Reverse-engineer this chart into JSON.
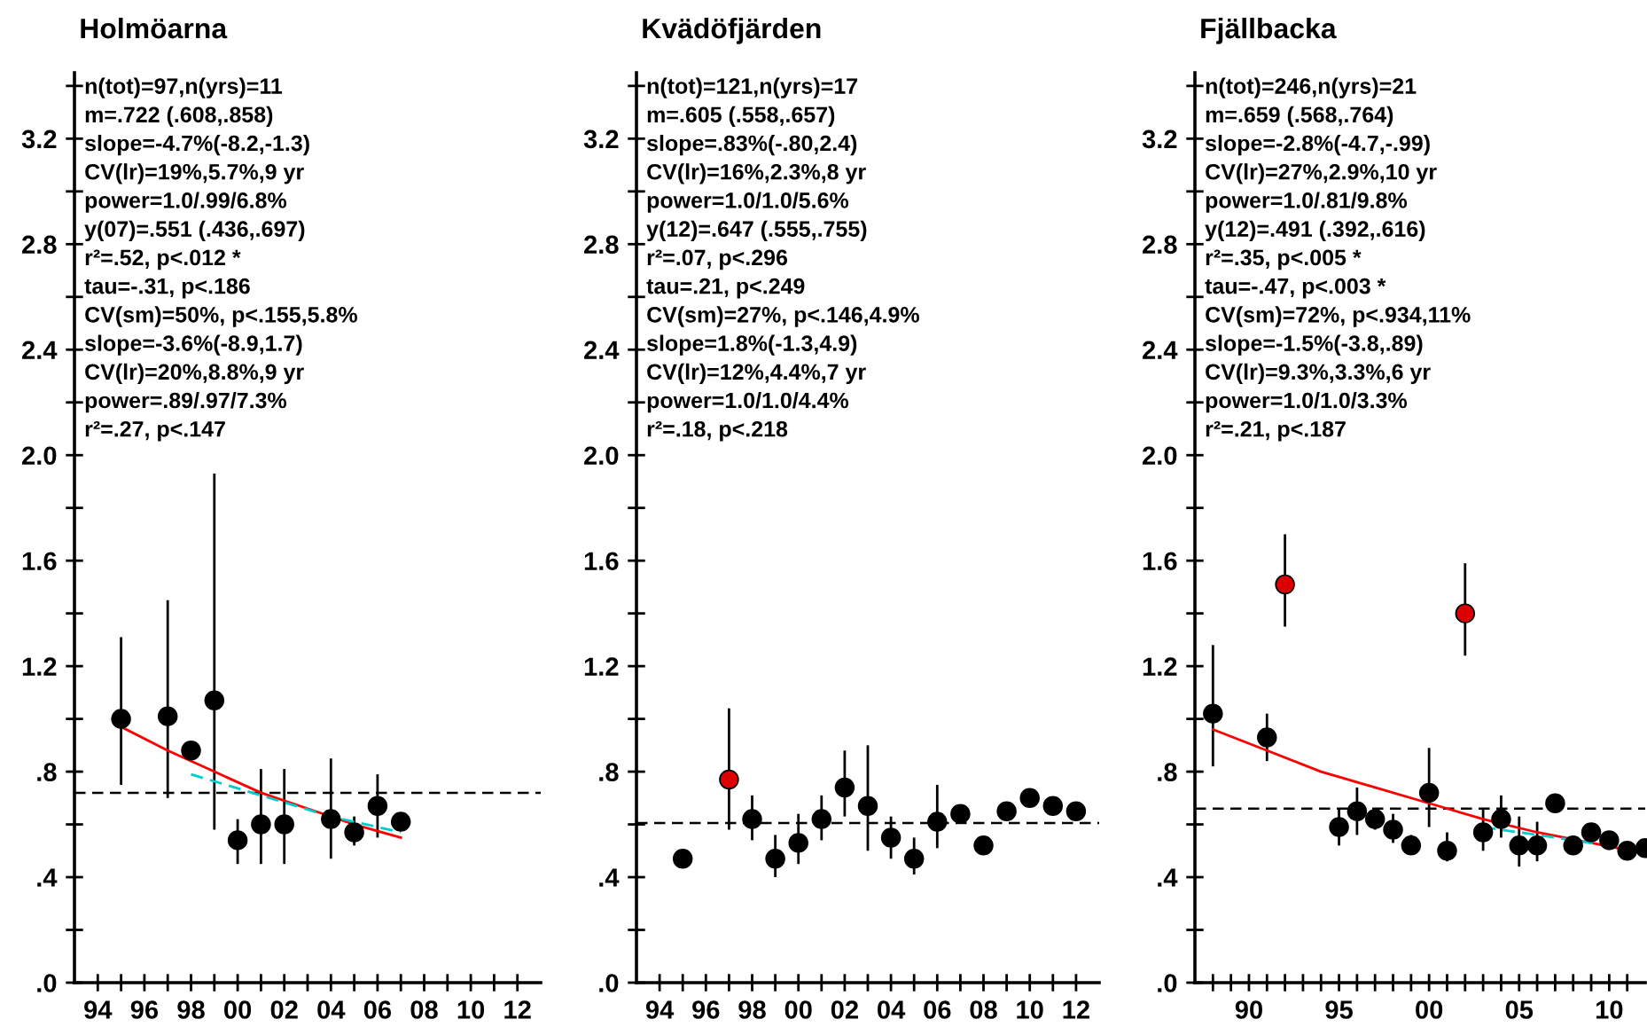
{
  "chart_data": [
    {
      "type": "scatter",
      "title": "Holmöarna",
      "marker": "circle",
      "grid": false,
      "xlim": [
        1993,
        2013
      ],
      "ylim": [
        0,
        3.45
      ],
      "xticks": [
        {
          "value": 1994,
          "label": "94"
        },
        {
          "value": 1995,
          "label": null
        },
        {
          "value": 1996,
          "label": "96"
        },
        {
          "value": 1997,
          "label": null
        },
        {
          "value": 1998,
          "label": "98"
        },
        {
          "value": 1999,
          "label": null
        },
        {
          "value": 2000,
          "label": "00"
        },
        {
          "value": 2001,
          "label": null
        },
        {
          "value": 2002,
          "label": "02"
        },
        {
          "value": 2003,
          "label": null
        },
        {
          "value": 2004,
          "label": "04"
        },
        {
          "value": 2005,
          "label": null
        },
        {
          "value": 2006,
          "label": "06"
        },
        {
          "value": 2007,
          "label": null
        },
        {
          "value": 2008,
          "label": "08"
        },
        {
          "value": 2009,
          "label": null
        },
        {
          "value": 2010,
          "label": "10"
        },
        {
          "value": 2011,
          "label": null
        },
        {
          "value": 2012,
          "label": "12"
        }
      ],
      "yticks": [
        {
          "value": 0,
          "label": ".0"
        },
        {
          "value": 0.2,
          "label": null
        },
        {
          "value": 0.4,
          "label": ".4"
        },
        {
          "value": 0.6,
          "label": null
        },
        {
          "value": 0.8,
          "label": ".8"
        },
        {
          "value": 1.0,
          "label": null
        },
        1.2,
        {
          "value": 1.4,
          "label": null
        },
        1.6,
        {
          "value": 1.8,
          "label": null
        },
        {
          "value": 2.0,
          "label": "2.0"
        },
        {
          "value": 2.2,
          "label": null
        },
        2.4,
        {
          "value": 2.6,
          "label": null
        },
        2.8,
        {
          "value": 3.0,
          "label": null
        },
        3.2,
        {
          "value": 3.4,
          "label": null
        }
      ],
      "series": [
        {
          "x": [
            1995,
            1997,
            1998,
            1999,
            2000,
            2001,
            2002,
            2004,
            2005,
            2006,
            2007
          ],
          "values": [
            1.0,
            1.01,
            0.88,
            1.07,
            0.54,
            0.6,
            0.6,
            0.62,
            0.57,
            0.67,
            0.61
          ],
          "colors": [
            "#000000",
            "#000000",
            "#000000",
            "#000000",
            "#000000",
            "#000000",
            "#000000",
            "#000000",
            "#000000",
            "#000000",
            "#000000"
          ],
          "errors": [
            [
              0.75,
              1.31
            ],
            [
              0.7,
              1.45
            ],
            null,
            [
              0.58,
              1.93
            ],
            [
              0.45,
              0.62
            ],
            [
              0.45,
              0.81
            ],
            [
              0.45,
              0.81
            ],
            [
              0.47,
              0.85
            ],
            [
              0.52,
              0.63
            ],
            [
              0.55,
              0.79
            ],
            null
          ]
        },
        {
          "type": "line",
          "color": "#ff0000",
          "marker": "none",
          "x": [
            1995,
            1997,
            1999,
            2001,
            2003,
            2005,
            2007
          ],
          "values": [
            0.97,
            0.88,
            0.8,
            0.72,
            0.66,
            0.6,
            0.55
          ]
        },
        {
          "type": "line",
          "color": "#00cccc",
          "marker": "none",
          "line_style": "dashed",
          "x": [
            1998,
            2001,
            2004,
            2007
          ],
          "values": [
            0.79,
            0.71,
            0.63,
            0.57
          ]
        }
      ],
      "ref_lines": [
        {
          "axis": "y",
          "value": 0.72,
          "color": "#000000",
          "line_style": "dashed"
        }
      ],
      "annotations": [
        "n(tot)=97,n(yrs)=11",
        "m=.722 (.608,.858)",
        "slope=-4.7%(-8.2,-1.3)",
        "CV(lr)=19%,5.7%,9 yr",
        "power=1.0/.99/6.8%",
        "y(07)=.551 (.436,.697)",
        "r²=.52, p<.012 *",
        "tau=-.31, p<.186",
        "CV(sm)=50%, p<.155,5.8%",
        "slope=-3.6%(-8.9,1.7)",
        "CV(lr)=20%,8.8%,9 yr",
        "power=.89/.97/7.3%",
        "r²=.27, p<.147"
      ]
    },
    {
      "type": "scatter",
      "title": "Kvädöfjärden",
      "marker": "circle",
      "grid": false,
      "xlim": [
        1993,
        2013
      ],
      "ylim": [
        0,
        3.45
      ],
      "xticks": [
        {
          "value": 1994,
          "label": "94"
        },
        {
          "value": 1995,
          "label": null
        },
        {
          "value": 1996,
          "label": "96"
        },
        {
          "value": 1997,
          "label": null
        },
        {
          "value": 1998,
          "label": "98"
        },
        {
          "value": 1999,
          "label": null
        },
        {
          "value": 2000,
          "label": "00"
        },
        {
          "value": 2001,
          "label": null
        },
        {
          "value": 2002,
          "label": "02"
        },
        {
          "value": 2003,
          "label": null
        },
        {
          "value": 2004,
          "label": "04"
        },
        {
          "value": 2005,
          "label": null
        },
        {
          "value": 2006,
          "label": "06"
        },
        {
          "value": 2007,
          "label": null
        },
        {
          "value": 2008,
          "label": "08"
        },
        {
          "value": 2009,
          "label": null
        },
        {
          "value": 2010,
          "label": "10"
        },
        {
          "value": 2011,
          "label": null
        },
        {
          "value": 2012,
          "label": "12"
        }
      ],
      "yticks": [
        {
          "value": 0,
          "label": ".0"
        },
        {
          "value": 0.2,
          "label": null
        },
        {
          "value": 0.4,
          "label": ".4"
        },
        {
          "value": 0.6,
          "label": null
        },
        {
          "value": 0.8,
          "label": ".8"
        },
        {
          "value": 1.0,
          "label": null
        },
        1.2,
        {
          "value": 1.4,
          "label": null
        },
        1.6,
        {
          "value": 1.8,
          "label": null
        },
        {
          "value": 2.0,
          "label": "2.0"
        },
        {
          "value": 2.2,
          "label": null
        },
        2.4,
        {
          "value": 2.6,
          "label": null
        },
        2.8,
        {
          "value": 3.0,
          "label": null
        },
        3.2,
        {
          "value": 3.4,
          "label": null
        }
      ],
      "series": [
        {
          "x": [
            1995,
            1997,
            1998,
            1999,
            2000,
            2001,
            2002,
            2003,
            2004,
            2005,
            2006,
            2007,
            2008,
            2009,
            2010,
            2011,
            2012
          ],
          "values": [
            0.47,
            0.77,
            0.62,
            0.47,
            0.53,
            0.62,
            0.74,
            0.67,
            0.55,
            0.47,
            0.61,
            0.64,
            0.52,
            0.65,
            0.7,
            0.67,
            0.65
          ],
          "colors": [
            "#000000",
            "#dd0000",
            "#000000",
            "#000000",
            "#000000",
            "#000000",
            "#000000",
            "#000000",
            "#000000",
            "#000000",
            "#000000",
            "#000000",
            "#000000",
            "#000000",
            "#000000",
            "#000000",
            "#000000"
          ],
          "errors": [
            null,
            [
              0.58,
              1.04
            ],
            [
              0.54,
              0.71
            ],
            [
              0.4,
              0.56
            ],
            [
              0.45,
              0.64
            ],
            [
              0.54,
              0.71
            ],
            [
              0.63,
              0.88
            ],
            [
              0.5,
              0.9
            ],
            [
              0.47,
              0.63
            ],
            [
              0.41,
              0.55
            ],
            [
              0.51,
              0.75
            ],
            null,
            null,
            null,
            null,
            null,
            null
          ]
        }
      ],
      "ref_lines": [
        {
          "axis": "y",
          "value": 0.605,
          "color": "#000000",
          "line_style": "dashed"
        }
      ],
      "annotations": [
        "n(tot)=121,n(yrs)=17",
        "m=.605 (.558,.657)",
        "slope=.83%(-.80,2.4)",
        "CV(lr)=16%,2.3%,8 yr",
        "power=1.0/1.0/5.6%",
        "y(12)=.647 (.555,.755)",
        "r²=.07, p<.296",
        "tau=.21, p<.249",
        "CV(sm)=27%, p<.146,4.9%",
        "slope=1.8%(-1.3,4.9)",
        "CV(lr)=12%,4.4%,7 yr",
        "power=1.0/1.0/4.4%",
        "r²=.18, p<.218"
      ]
    },
    {
      "type": "scatter",
      "title": "Fjällbacka",
      "marker": "circle",
      "grid": false,
      "xlim": [
        1987,
        2012
      ],
      "ylim": [
        0,
        3.45
      ],
      "xticks": [
        {
          "value": 1988,
          "label": null
        },
        {
          "value": 1989,
          "label": null
        },
        {
          "value": 1990,
          "label": "90"
        },
        {
          "value": 1991,
          "label": null
        },
        {
          "value": 1992,
          "label": null
        },
        {
          "value": 1993,
          "label": null
        },
        {
          "value": 1994,
          "label": null
        },
        {
          "value": 1995,
          "label": "95"
        },
        {
          "value": 1996,
          "label": null
        },
        {
          "value": 1997,
          "label": null
        },
        {
          "value": 1998,
          "label": null
        },
        {
          "value": 1999,
          "label": null
        },
        {
          "value": 2000,
          "label": "00"
        },
        {
          "value": 2001,
          "label": null
        },
        {
          "value": 2002,
          "label": null
        },
        {
          "value": 2003,
          "label": null
        },
        {
          "value": 2004,
          "label": null
        },
        {
          "value": 2005,
          "label": "05"
        },
        {
          "value": 2006,
          "label": null
        },
        {
          "value": 2007,
          "label": null
        },
        {
          "value": 2008,
          "label": null
        },
        {
          "value": 2009,
          "label": null
        },
        {
          "value": 2010,
          "label": "10"
        },
        {
          "value": 2011,
          "label": null
        }
      ],
      "yticks": [
        {
          "value": 0,
          "label": ".0"
        },
        {
          "value": 0.2,
          "label": null
        },
        {
          "value": 0.4,
          "label": ".4"
        },
        {
          "value": 0.6,
          "label": null
        },
        {
          "value": 0.8,
          "label": ".8"
        },
        {
          "value": 1.0,
          "label": null
        },
        1.2,
        {
          "value": 1.4,
          "label": null
        },
        1.6,
        {
          "value": 1.8,
          "label": null
        },
        {
          "value": 2.0,
          "label": "2.0"
        },
        {
          "value": 2.2,
          "label": null
        },
        2.4,
        {
          "value": 2.6,
          "label": null
        },
        2.8,
        {
          "value": 3.0,
          "label": null
        },
        3.2,
        {
          "value": 3.4,
          "label": null
        }
      ],
      "series": [
        {
          "x": [
            1988,
            1991,
            1992,
            1995,
            1996,
            1997,
            1998,
            1999,
            2000,
            2001,
            2002,
            2003,
            2004,
            2005,
            2006,
            2007,
            2008,
            2009,
            2010,
            2011,
            2012
          ],
          "values": [
            1.02,
            0.93,
            1.51,
            0.59,
            0.65,
            0.62,
            0.58,
            0.52,
            0.72,
            0.5,
            1.4,
            0.57,
            0.62,
            0.52,
            0.52,
            0.68,
            0.52,
            0.57,
            0.54,
            0.5,
            0.51
          ],
          "colors": [
            "#000000",
            "#000000",
            "#dd0000",
            "#000000",
            "#000000",
            "#000000",
            "#000000",
            "#000000",
            "#000000",
            "#000000",
            "#dd0000",
            "#000000",
            "#000000",
            "#000000",
            "#000000",
            "#000000",
            "#000000",
            "#000000",
            "#000000",
            "#000000",
            "#000000"
          ],
          "errors": [
            [
              0.82,
              1.28
            ],
            [
              0.84,
              1.02
            ],
            [
              1.35,
              1.7
            ],
            [
              0.52,
              0.66
            ],
            [
              0.56,
              0.74
            ],
            [
              0.58,
              0.66
            ],
            [
              0.53,
              0.64
            ],
            [
              0.49,
              0.56
            ],
            [
              0.59,
              0.89
            ],
            [
              0.46,
              0.57
            ],
            [
              1.24,
              1.59
            ],
            [
              0.5,
              0.66
            ],
            [
              0.55,
              0.71
            ],
            [
              0.44,
              0.63
            ],
            [
              0.46,
              0.61
            ],
            null,
            null,
            null,
            null,
            null,
            null
          ]
        },
        {
          "type": "line",
          "color": "#ff0000",
          "marker": "none",
          "x": [
            1988,
            1991,
            1994,
            1997,
            2000,
            2003,
            2006,
            2009,
            2012
          ],
          "values": [
            0.96,
            0.88,
            0.8,
            0.74,
            0.68,
            0.62,
            0.57,
            0.53,
            0.49
          ]
        },
        {
          "type": "line",
          "color": "#00cccc",
          "marker": "none",
          "line_style": "dashed",
          "x": [
            2003,
            2006,
            2009,
            2012
          ],
          "values": [
            0.59,
            0.56,
            0.53,
            0.51
          ]
        }
      ],
      "ref_lines": [
        {
          "axis": "y",
          "value": 0.66,
          "color": "#000000",
          "line_style": "dashed"
        }
      ],
      "annotations": [
        "n(tot)=246,n(yrs)=21",
        "m=.659 (.568,.764)",
        "slope=-2.8%(-4.7,-.99)",
        "CV(lr)=27%,2.9%,10 yr",
        "power=1.0/.81/9.8%",
        "y(12)=.491 (.392,.616)",
        "r²=.35, p<.005 *",
        "tau=-.47, p<.003 *",
        "CV(sm)=72%, p<.934,11%",
        "slope=-1.5%(-3.8,.89)",
        "CV(lr)=9.3%,3.3%,6 yr",
        "power=1.0/1.0/3.3%",
        "r²=.21, p<.187"
      ]
    }
  ]
}
